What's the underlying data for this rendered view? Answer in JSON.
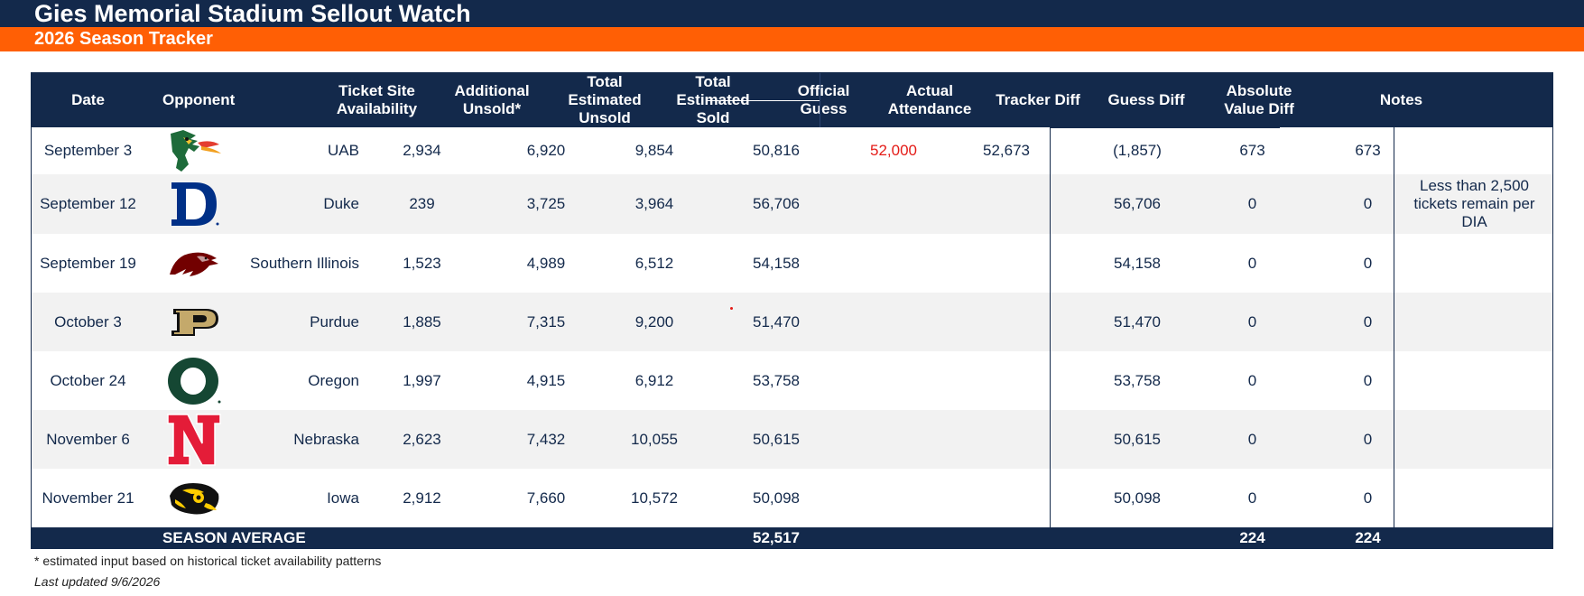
{
  "title": "Gies Memorial Stadium Sellout Watch",
  "subtitle": "2026 Season Tracker",
  "headers": {
    "date": "Date",
    "opponent": "Opponent",
    "ticket_site": "Ticket Site\nAvailability",
    "additional": "Additional\nUnsold*",
    "total_unsold": "Total\nEstimated\nUnsold",
    "total_sold": "Total\nEstimated\nSold",
    "official_guess": "Official\nGuess",
    "actual": "Actual\nAttendance",
    "tracker_diff": "Tracker Diff",
    "guess_diff": "Guess Diff",
    "abs_diff": "Absolute\nValue Diff",
    "notes": "Notes"
  },
  "rows": [
    {
      "date": "September 3",
      "logo": "uab-dragon-logo",
      "opponent": "UAB",
      "ticket_site": "2,934",
      "additional": "6,920",
      "total_unsold": "9,854",
      "total_sold": "50,816",
      "official_guess": "52,000",
      "actual": "52,673",
      "tracker_diff": "(1,857)",
      "guess_diff": "673",
      "abs_diff": "673",
      "notes": ""
    },
    {
      "date": "September 12",
      "logo": "duke-logo",
      "opponent": "Duke",
      "ticket_site": "239",
      "additional": "3,725",
      "total_unsold": "3,964",
      "total_sold": "56,706",
      "official_guess": "",
      "actual": "",
      "tracker_diff": "56,706",
      "guess_diff": "0",
      "abs_diff": "0",
      "notes": "Less than 2,500 tickets remain per DIA"
    },
    {
      "date": "September 19",
      "logo": "southern-illinois-saluki-logo",
      "opponent": "Southern Illinois",
      "ticket_site": "1,523",
      "additional": "4,989",
      "total_unsold": "6,512",
      "total_sold": "54,158",
      "official_guess": "",
      "actual": "",
      "tracker_diff": "54,158",
      "guess_diff": "0",
      "abs_diff": "0",
      "notes": ""
    },
    {
      "date": "October 3",
      "logo": "purdue-logo",
      "opponent": "Purdue",
      "ticket_site": "1,885",
      "additional": "7,315",
      "total_unsold": "9,200",
      "total_sold": "51,470",
      "official_guess": "",
      "actual": "",
      "tracker_diff": "51,470",
      "guess_diff": "0",
      "abs_diff": "0",
      "notes": ""
    },
    {
      "date": "October 24",
      "logo": "oregon-logo",
      "opponent": "Oregon",
      "ticket_site": "1,997",
      "additional": "4,915",
      "total_unsold": "6,912",
      "total_sold": "53,758",
      "official_guess": "",
      "actual": "",
      "tracker_diff": "53,758",
      "guess_diff": "0",
      "abs_diff": "0",
      "notes": ""
    },
    {
      "date": "November 6",
      "logo": "nebraska-logo",
      "opponent": "Nebraska",
      "ticket_site": "2,623",
      "additional": "7,432",
      "total_unsold": "10,055",
      "total_sold": "50,615",
      "official_guess": "",
      "actual": "",
      "tracker_diff": "50,615",
      "guess_diff": "0",
      "abs_diff": "0",
      "notes": ""
    },
    {
      "date": "November 21",
      "logo": "iowa-hawkeye-logo",
      "opponent": "Iowa",
      "ticket_site": "2,912",
      "additional": "7,660",
      "total_unsold": "10,572",
      "total_sold": "50,098",
      "official_guess": "",
      "actual": "",
      "tracker_diff": "50,098",
      "guess_diff": "0",
      "abs_diff": "0",
      "notes": ""
    }
  ],
  "footer": {
    "label": "SEASON AVERAGE",
    "total_sold": "52,517",
    "guess_diff": "224",
    "abs_diff": "224"
  },
  "footnote": "* estimated input based on historical ticket availability patterns",
  "updated": "Last updated 9/6/2026",
  "colors": {
    "navy": "#13294B",
    "orange": "#FF5F05",
    "red": "#E41B17",
    "alt_row": "#F2F2F2"
  }
}
